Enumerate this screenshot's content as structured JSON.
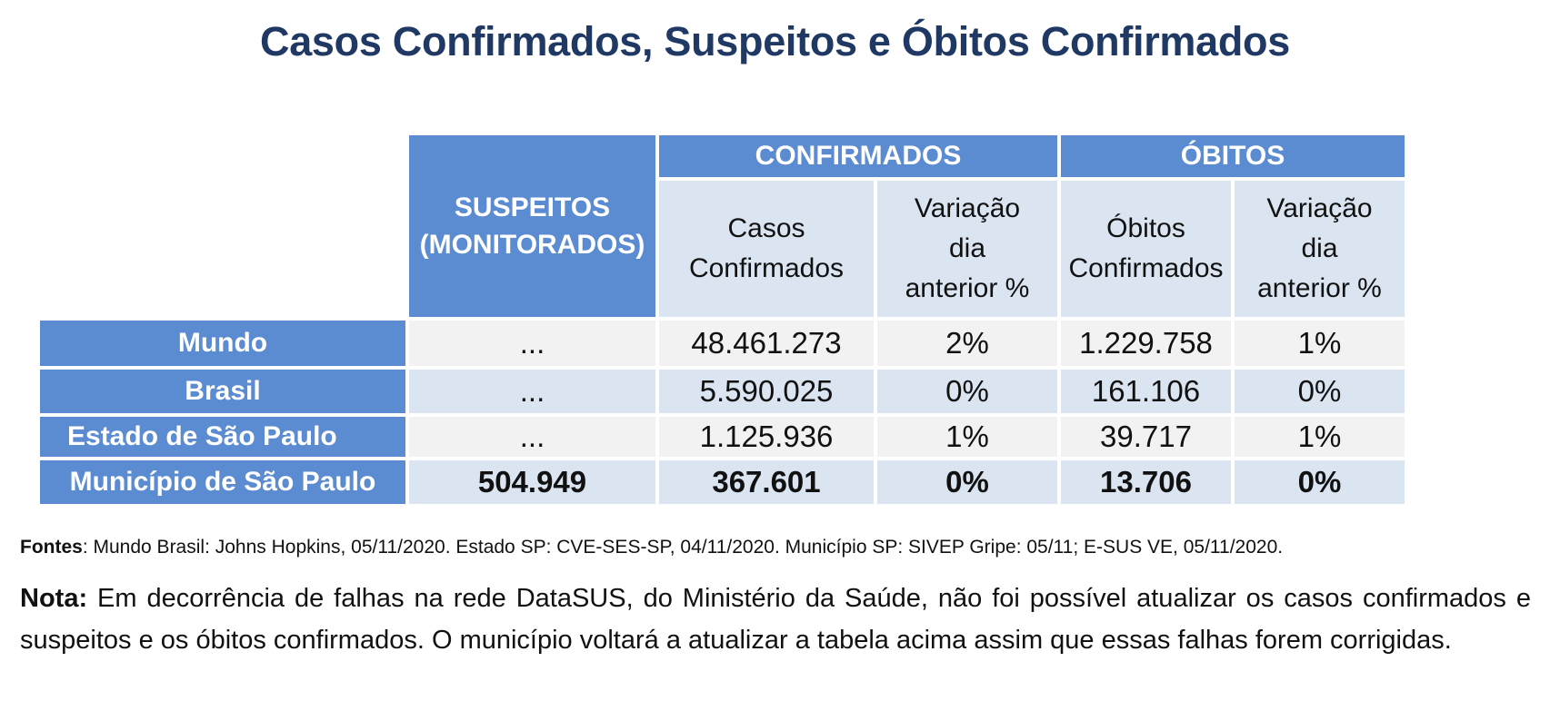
{
  "title": "Casos Confirmados, Suspeitos e Óbitos Confirmados",
  "headers": {
    "suspeitos_line1": "SUSPEITOS",
    "suspeitos_line2": "(MONITORADOS)",
    "confirmados": "CONFIRMADOS",
    "obitos": "ÓBITOS",
    "casos_line1": "Casos",
    "casos_line2": "Confirmados",
    "var_line1": "Variação",
    "var_line2": "dia",
    "var_line3": "anterior %",
    "obitos_conf_line1": "Óbitos",
    "obitos_conf_line2": "Confirmados"
  },
  "rows": [
    {
      "label": "Mundo",
      "suspeitos": "...",
      "casos": "48.461.273",
      "var_casos": "2%",
      "obitos": "1.229.758",
      "var_obitos": "1%"
    },
    {
      "label": "Brasil",
      "suspeitos": "...",
      "casos": "5.590.025",
      "var_casos": "0%",
      "obitos": "161.106",
      "var_obitos": "0%"
    },
    {
      "label": "Estado de São Paulo",
      "suspeitos": "...",
      "casos": "1.125.936",
      "var_casos": "1%",
      "obitos": "39.717",
      "var_obitos": "1%"
    },
    {
      "label": "Município de São Paulo",
      "suspeitos": "504.949",
      "casos": "367.601",
      "var_casos": "0%",
      "obitos": "13.706",
      "var_obitos": "0%"
    }
  ],
  "sources": {
    "label": "Fontes",
    "text": ": Mundo  Brasil: Johns Hopkins, 05/11/2020. Estado SP: CVE-SES-SP, 04/11/2020. Município SP: SIVEP Gripe: 05/11; E-SUS VE, 05/11/2020."
  },
  "note": {
    "label": "Nota:",
    "text": " Em decorrência de falhas na rede DataSUS, do Ministério da Saúde, não foi possível atualizar os casos confirmados e suspeitos e os óbitos confirmados. O município voltará a atualizar a tabela acima  assim que  essas falhas forem corrigidas."
  }
}
